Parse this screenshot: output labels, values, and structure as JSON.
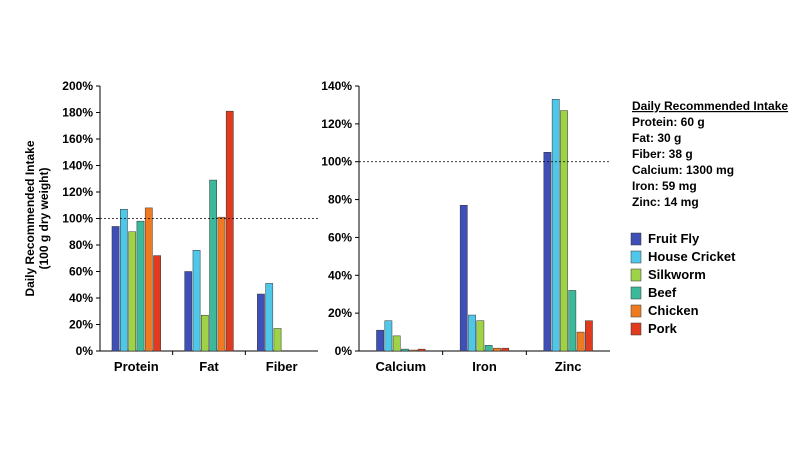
{
  "chart_data": [
    {
      "type": "bar",
      "ylabel": "Daily Recommended Intake",
      "ylabel_sub": "(100 g dry weight)",
      "ylim": [
        0,
        200
      ],
      "yticks": [
        0,
        20,
        40,
        60,
        80,
        100,
        120,
        140,
        160,
        180,
        200
      ],
      "tick_suffix": "%",
      "reference_line": 100,
      "categories": [
        "Protein",
        "Fat",
        "Fiber"
      ],
      "series": [
        {
          "name": "Fruit Fly",
          "values": [
            94,
            60,
            43
          ]
        },
        {
          "name": "House Cricket",
          "values": [
            107,
            76,
            51
          ]
        },
        {
          "name": "Silkworm",
          "values": [
            90,
            27,
            17
          ]
        },
        {
          "name": "Beef",
          "values": [
            98,
            129,
            null
          ]
        },
        {
          "name": "Chicken",
          "values": [
            108,
            101,
            null
          ]
        },
        {
          "name": "Pork",
          "values": [
            72,
            181,
            null
          ]
        }
      ]
    },
    {
      "type": "bar",
      "ylim": [
        0,
        140
      ],
      "yticks": [
        0,
        20,
        40,
        60,
        80,
        100,
        120,
        140
      ],
      "tick_suffix": "%",
      "reference_line": 100,
      "categories": [
        "Calcium",
        "Iron",
        "Zinc"
      ],
      "series": [
        {
          "name": "Fruit Fly",
          "values": [
            11,
            77,
            105
          ]
        },
        {
          "name": "House Cricket",
          "values": [
            16,
            19,
            133
          ]
        },
        {
          "name": "Silkworm",
          "values": [
            8,
            16,
            127
          ]
        },
        {
          "name": "Beef",
          "values": [
            1,
            3,
            32
          ]
        },
        {
          "name": "Chicken",
          "values": [
            0.5,
            1.5,
            10
          ]
        },
        {
          "name": "Pork",
          "values": [
            1,
            1.5,
            16
          ]
        }
      ]
    }
  ],
  "series_colors": [
    "#3f4fb8",
    "#4fc7e8",
    "#9ed247",
    "#3cb89a",
    "#f07a22",
    "#e03a1f"
  ],
  "legend": [
    "Fruit Fly",
    "House Cricket",
    "Silkworm",
    "Beef",
    "Chicken",
    "Pork"
  ],
  "intake_note": {
    "title": "Daily Recommended Intake",
    "lines": [
      "Protein: 60 g",
      "Fat: 30 g",
      "Fiber: 38 g",
      "Calcium: 1300 mg",
      "Iron: 59 mg",
      "Zinc: 14 mg"
    ]
  }
}
